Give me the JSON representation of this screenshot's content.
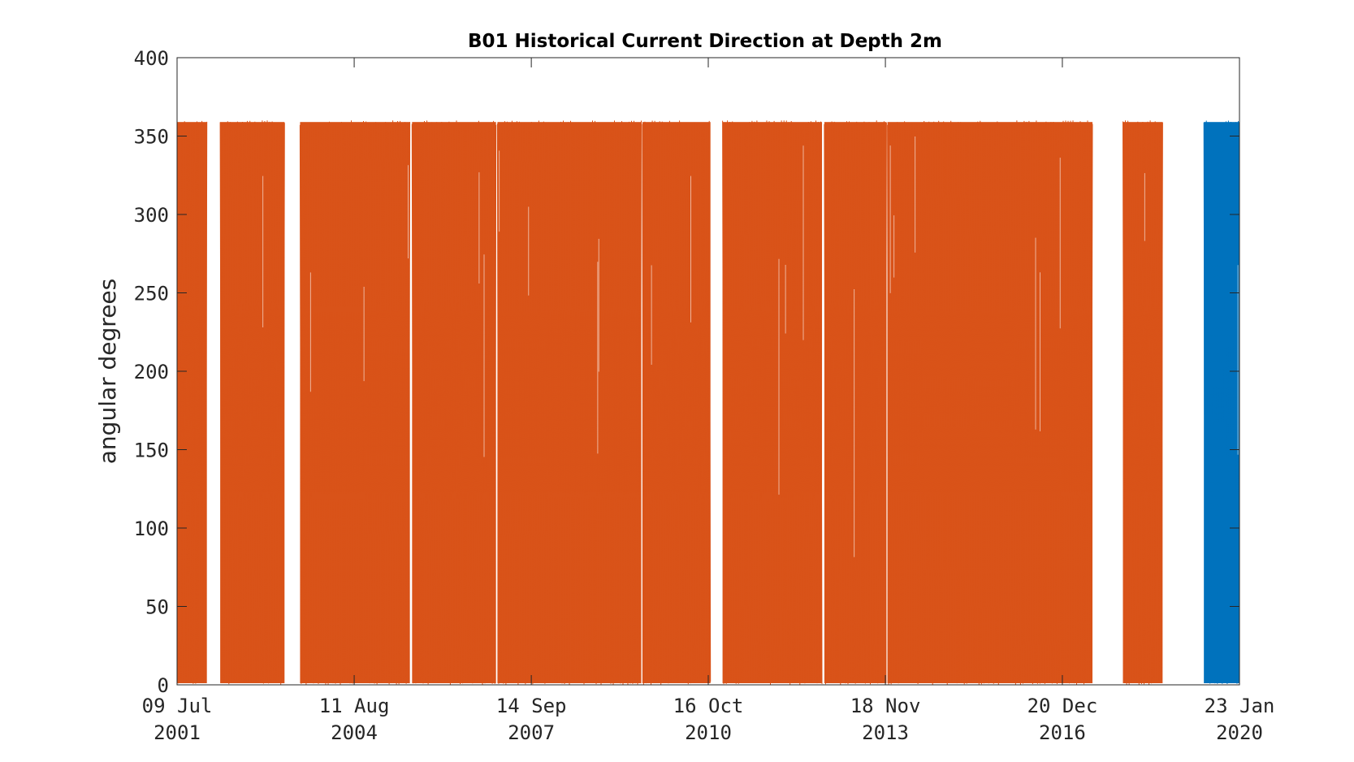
{
  "chart_data": {
    "type": "line",
    "title": "B01 Historical Current Direction at Depth 2m",
    "xlabel": "",
    "ylabel": "angular degrees",
    "ylim": [
      0,
      400
    ],
    "yticks": [
      0,
      50,
      100,
      150,
      200,
      250,
      300,
      350,
      400
    ],
    "xlim": [
      "2001-07-09",
      "2020-01-23"
    ],
    "xticks": [
      {
        "date": "2001-07-09",
        "line1": "09 Jul",
        "line2": "2001"
      },
      {
        "date": "2004-08-11",
        "line1": "11 Aug",
        "line2": "2004"
      },
      {
        "date": "2007-09-14",
        "line1": "14 Sep",
        "line2": "2007"
      },
      {
        "date": "2010-10-16",
        "line1": "16 Oct",
        "line2": "2010"
      },
      {
        "date": "2013-11-18",
        "line1": "18 Nov",
        "line2": "2013"
      },
      {
        "date": "2016-12-20",
        "line1": "20 Dec",
        "line2": "2016"
      },
      {
        "date": "2020-01-23",
        "line1": "23 Jan",
        "line2": "2020"
      }
    ],
    "grid": false,
    "series": [
      {
        "color": "#D95319",
        "value_range": [
          0,
          360
        ],
        "coverage": [
          [
            "2001-07-09",
            "2002-01-15"
          ],
          [
            "2002-04-10",
            "2003-05-25"
          ],
          [
            "2003-09-01",
            "2005-08-01"
          ],
          [
            "2005-08-15",
            "2007-02-01"
          ],
          [
            "2007-02-10",
            "2009-08-15"
          ],
          [
            "2009-08-22",
            "2010-10-30"
          ],
          [
            "2011-01-15",
            "2012-10-10"
          ],
          [
            "2012-10-25",
            "2013-11-25"
          ],
          [
            "2013-12-01",
            "2017-06-30"
          ],
          [
            "2018-01-10",
            "2018-09-20"
          ]
        ]
      },
      {
        "color": "#0072BD",
        "value_range": [
          0,
          360
        ],
        "coverage": [
          [
            "2019-06-10",
            "2020-01-23"
          ]
        ]
      }
    ]
  }
}
